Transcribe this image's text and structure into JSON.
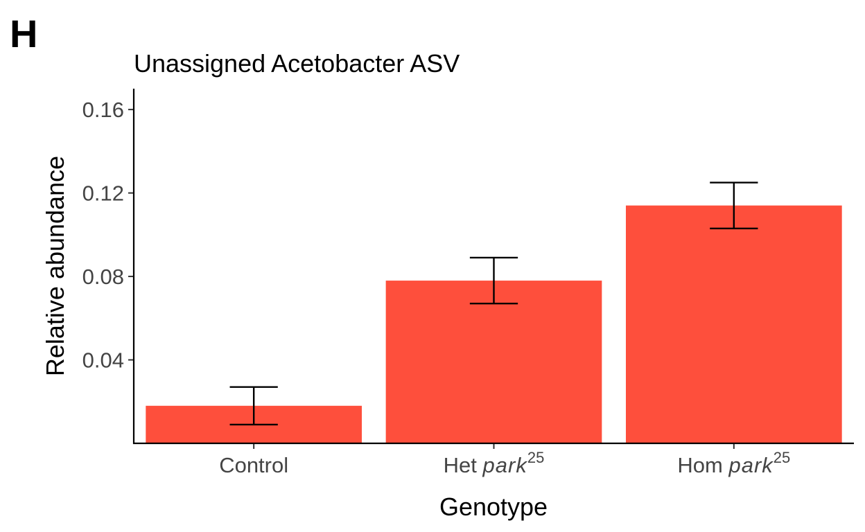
{
  "panel_label": "H",
  "chart_data": {
    "type": "bar",
    "title": "Unassigned Acetobacter ASV",
    "xlabel": "Genotype",
    "ylabel": "Relative abundance",
    "categories": [
      {
        "text": "Control",
        "italic": "",
        "sup": ""
      },
      {
        "text": "Het ",
        "italic": "park",
        "sup": "25"
      },
      {
        "text": "Hom ",
        "italic": "park",
        "sup": "25"
      }
    ],
    "values": [
      0.018,
      0.078,
      0.114
    ],
    "error_low": [
      0.009,
      0.067,
      0.103
    ],
    "error_high": [
      0.027,
      0.089,
      0.125
    ],
    "ylim": [
      0,
      0.17
    ],
    "yticks": [
      0.04,
      0.08,
      0.12,
      0.16
    ],
    "ytick_labels": [
      "0.04",
      "0.08",
      "0.12",
      "0.16"
    ],
    "bar_color": "#fe4f3c",
    "grid": false,
    "legend": "none"
  }
}
